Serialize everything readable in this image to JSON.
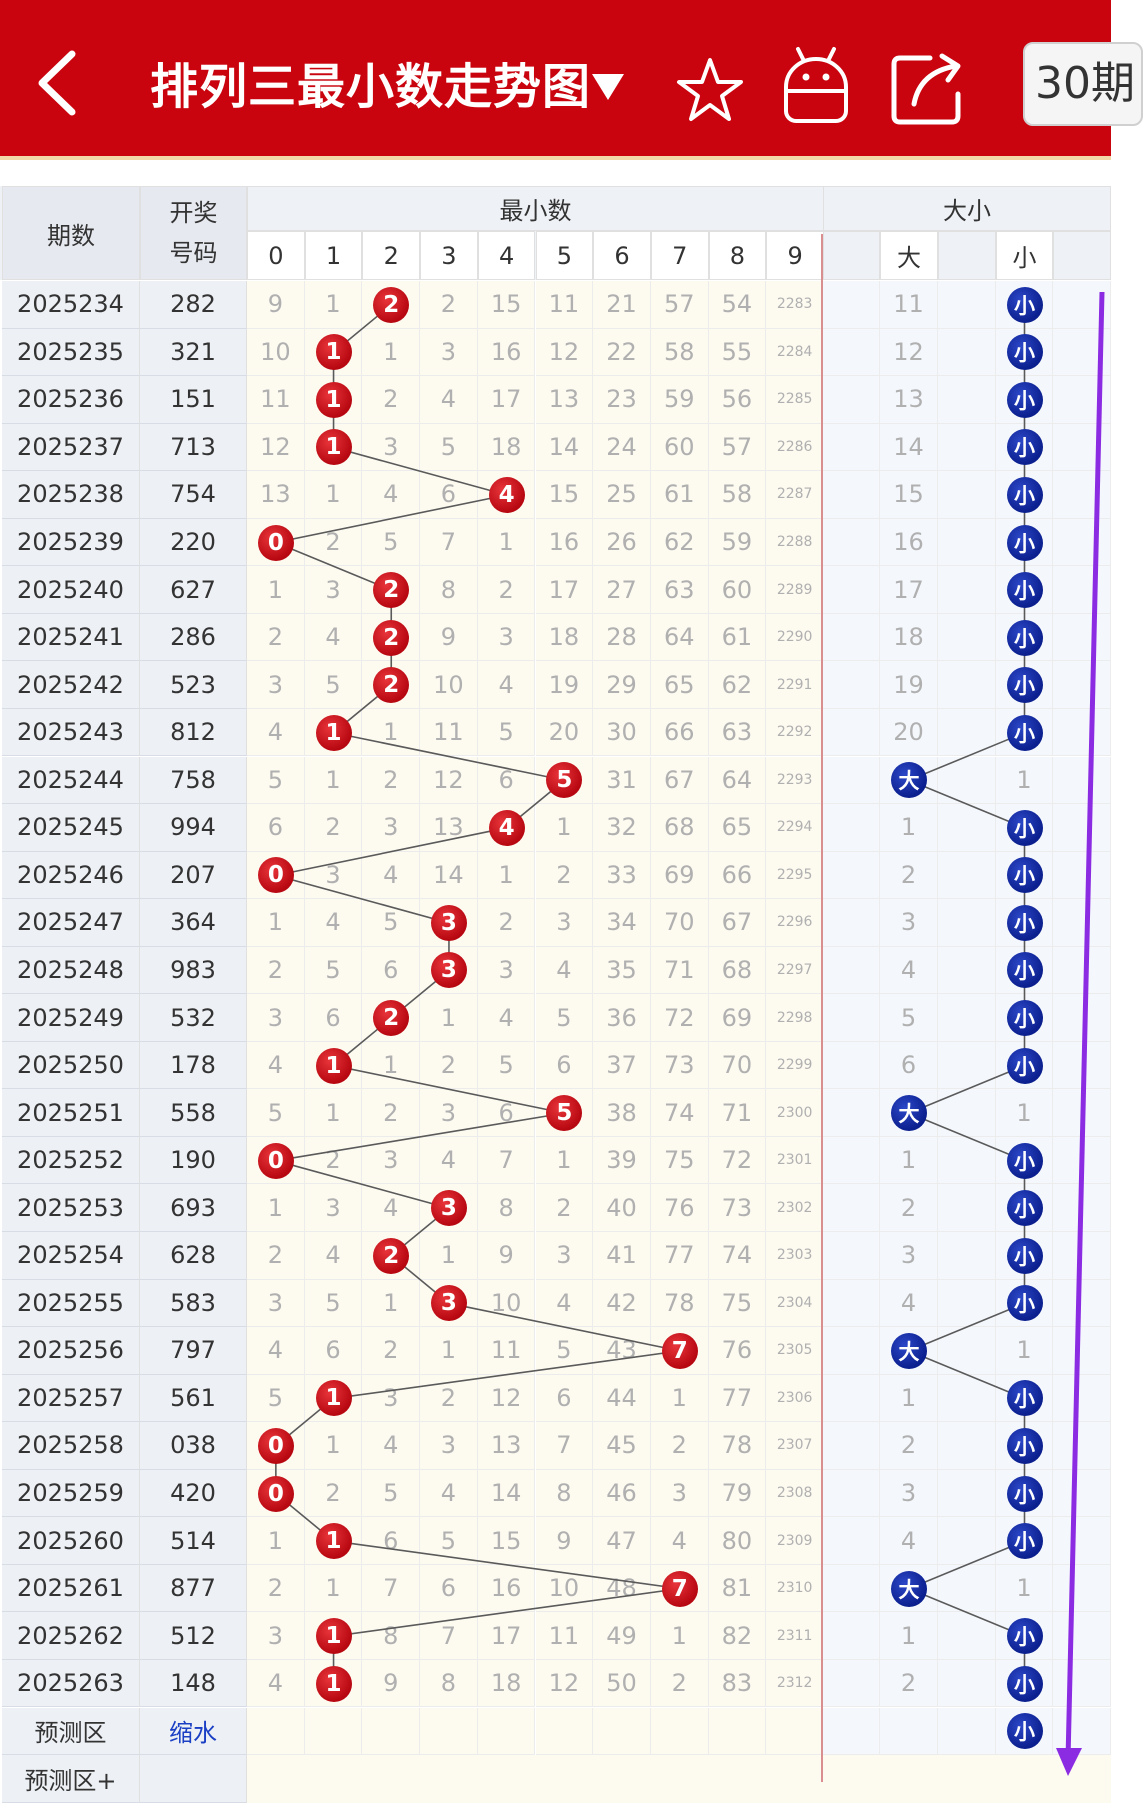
{
  "header": {
    "title": "排列三最小数走势图",
    "period_select": "30期"
  },
  "table": {
    "col_period": "期数",
    "col_code_line1": "开奖",
    "col_code_line2": "号码",
    "group_min": "最小数",
    "group_size": "大小",
    "digits": [
      "0",
      "1",
      "2",
      "3",
      "4",
      "5",
      "6",
      "7",
      "8",
      "9"
    ],
    "size_big": "大",
    "size_small": "小",
    "rows": [
      {
        "period": "2025234",
        "code": "282",
        "min": 2,
        "miss": [
          "9",
          "1",
          "2",
          "2",
          "15",
          "11",
          "21",
          "57",
          "54",
          "2283"
        ],
        "size": "small",
        "big_miss": "11"
      },
      {
        "period": "2025235",
        "code": "321",
        "min": 1,
        "miss": [
          "10",
          "1",
          "1",
          "3",
          "16",
          "12",
          "22",
          "58",
          "55",
          "2284"
        ],
        "size": "small",
        "big_miss": "12"
      },
      {
        "period": "2025236",
        "code": "151",
        "min": 1,
        "miss": [
          "11",
          "1",
          "2",
          "4",
          "17",
          "13",
          "23",
          "59",
          "56",
          "2285"
        ],
        "size": "small",
        "big_miss": "13"
      },
      {
        "period": "2025237",
        "code": "713",
        "min": 1,
        "miss": [
          "12",
          "1",
          "3",
          "5",
          "18",
          "14",
          "24",
          "60",
          "57",
          "2286"
        ],
        "size": "small",
        "big_miss": "14"
      },
      {
        "period": "2025238",
        "code": "754",
        "min": 4,
        "miss": [
          "13",
          "1",
          "4",
          "6",
          "4",
          "15",
          "25",
          "61",
          "58",
          "2287"
        ],
        "size": "small",
        "big_miss": "15"
      },
      {
        "period": "2025239",
        "code": "220",
        "min": 0,
        "miss": [
          "0",
          "2",
          "5",
          "7",
          "1",
          "16",
          "26",
          "62",
          "59",
          "2288"
        ],
        "size": "small",
        "big_miss": "16"
      },
      {
        "period": "2025240",
        "code": "627",
        "min": 2,
        "miss": [
          "1",
          "3",
          "2",
          "8",
          "2",
          "17",
          "27",
          "63",
          "60",
          "2289"
        ],
        "size": "small",
        "big_miss": "17"
      },
      {
        "period": "2025241",
        "code": "286",
        "min": 2,
        "miss": [
          "2",
          "4",
          "2",
          "9",
          "3",
          "18",
          "28",
          "64",
          "61",
          "2290"
        ],
        "size": "small",
        "big_miss": "18"
      },
      {
        "period": "2025242",
        "code": "523",
        "min": 2,
        "miss": [
          "3",
          "5",
          "2",
          "10",
          "4",
          "19",
          "29",
          "65",
          "62",
          "2291"
        ],
        "size": "small",
        "big_miss": "19"
      },
      {
        "period": "2025243",
        "code": "812",
        "min": 1,
        "miss": [
          "4",
          "1",
          "1",
          "11",
          "5",
          "20",
          "30",
          "66",
          "63",
          "2292"
        ],
        "size": "small",
        "big_miss": "20"
      },
      {
        "period": "2025244",
        "code": "758",
        "min": 5,
        "miss": [
          "5",
          "1",
          "2",
          "12",
          "6",
          "5",
          "31",
          "67",
          "64",
          "2293"
        ],
        "size": "big",
        "small_miss": "1"
      },
      {
        "period": "2025245",
        "code": "994",
        "min": 4,
        "miss": [
          "6",
          "2",
          "3",
          "13",
          "4",
          "1",
          "32",
          "68",
          "65",
          "2294"
        ],
        "size": "small",
        "big_miss": "1"
      },
      {
        "period": "2025246",
        "code": "207",
        "min": 0,
        "miss": [
          "0",
          "3",
          "4",
          "14",
          "1",
          "2",
          "33",
          "69",
          "66",
          "2295"
        ],
        "size": "small",
        "big_miss": "2"
      },
      {
        "period": "2025247",
        "code": "364",
        "min": 3,
        "miss": [
          "1",
          "4",
          "5",
          "3",
          "2",
          "3",
          "34",
          "70",
          "67",
          "2296"
        ],
        "size": "small",
        "big_miss": "3"
      },
      {
        "period": "2025248",
        "code": "983",
        "min": 3,
        "miss": [
          "2",
          "5",
          "6",
          "3",
          "3",
          "4",
          "35",
          "71",
          "68",
          "2297"
        ],
        "size": "small",
        "big_miss": "4"
      },
      {
        "period": "2025249",
        "code": "532",
        "min": 2,
        "miss": [
          "3",
          "6",
          "2",
          "1",
          "4",
          "5",
          "36",
          "72",
          "69",
          "2298"
        ],
        "size": "small",
        "big_miss": "5"
      },
      {
        "period": "2025250",
        "code": "178",
        "min": 1,
        "miss": [
          "4",
          "1",
          "1",
          "2",
          "5",
          "6",
          "37",
          "73",
          "70",
          "2299"
        ],
        "size": "small",
        "big_miss": "6"
      },
      {
        "period": "2025251",
        "code": "558",
        "min": 5,
        "miss": [
          "5",
          "1",
          "2",
          "3",
          "6",
          "5",
          "38",
          "74",
          "71",
          "2300"
        ],
        "size": "big",
        "small_miss": "1"
      },
      {
        "period": "2025252",
        "code": "190",
        "min": 0,
        "miss": [
          "0",
          "2",
          "3",
          "4",
          "7",
          "1",
          "39",
          "75",
          "72",
          "2301"
        ],
        "size": "small",
        "big_miss": "1"
      },
      {
        "period": "2025253",
        "code": "693",
        "min": 3,
        "miss": [
          "1",
          "3",
          "4",
          "3",
          "8",
          "2",
          "40",
          "76",
          "73",
          "2302"
        ],
        "size": "small",
        "big_miss": "2"
      },
      {
        "period": "2025254",
        "code": "628",
        "min": 2,
        "miss": [
          "2",
          "4",
          "2",
          "1",
          "9",
          "3",
          "41",
          "77",
          "74",
          "2303"
        ],
        "size": "small",
        "big_miss": "3"
      },
      {
        "period": "2025255",
        "code": "583",
        "min": 3,
        "miss": [
          "3",
          "5",
          "1",
          "3",
          "10",
          "4",
          "42",
          "78",
          "75",
          "2304"
        ],
        "size": "small",
        "big_miss": "4"
      },
      {
        "period": "2025256",
        "code": "797",
        "min": 7,
        "miss": [
          "4",
          "6",
          "2",
          "1",
          "11",
          "5",
          "43",
          "7",
          "76",
          "2305"
        ],
        "size": "big",
        "small_miss": "1"
      },
      {
        "period": "2025257",
        "code": "561",
        "min": 1,
        "miss": [
          "5",
          "1",
          "3",
          "2",
          "12",
          "6",
          "44",
          "1",
          "77",
          "2306"
        ],
        "size": "small",
        "big_miss": "1"
      },
      {
        "period": "2025258",
        "code": "038",
        "min": 0,
        "miss": [
          "0",
          "1",
          "4",
          "3",
          "13",
          "7",
          "45",
          "2",
          "78",
          "2307"
        ],
        "size": "small",
        "big_miss": "2"
      },
      {
        "period": "2025259",
        "code": "420",
        "min": 0,
        "miss": [
          "0",
          "2",
          "5",
          "4",
          "14",
          "8",
          "46",
          "3",
          "79",
          "2308"
        ],
        "size": "small",
        "big_miss": "3"
      },
      {
        "period": "2025260",
        "code": "514",
        "min": 1,
        "miss": [
          "1",
          "1",
          "6",
          "5",
          "15",
          "9",
          "47",
          "4",
          "80",
          "2309"
        ],
        "size": "small",
        "big_miss": "4"
      },
      {
        "period": "2025261",
        "code": "877",
        "min": 7,
        "miss": [
          "2",
          "1",
          "7",
          "6",
          "16",
          "10",
          "48",
          "7",
          "81",
          "2310"
        ],
        "size": "big",
        "small_miss": "1"
      },
      {
        "period": "2025262",
        "code": "512",
        "min": 1,
        "miss": [
          "3",
          "1",
          "8",
          "7",
          "17",
          "11",
          "49",
          "1",
          "82",
          "2311"
        ],
        "size": "small",
        "big_miss": "1"
      },
      {
        "period": "2025263",
        "code": "148",
        "min": 1,
        "miss": [
          "4",
          "1",
          "9",
          "8",
          "18",
          "12",
          "50",
          "2",
          "83",
          "2312"
        ],
        "size": "small",
        "big_miss": "2"
      }
    ],
    "predict_label": "预测区",
    "predict_link": "缩水",
    "predict_plus_label": "预测区+"
  },
  "colors": {
    "header_bg": "#c9040e",
    "red_ball": "#c40a12",
    "blue_ball": "#0b1f8e",
    "trend_arrow": "#8b2be2"
  }
}
